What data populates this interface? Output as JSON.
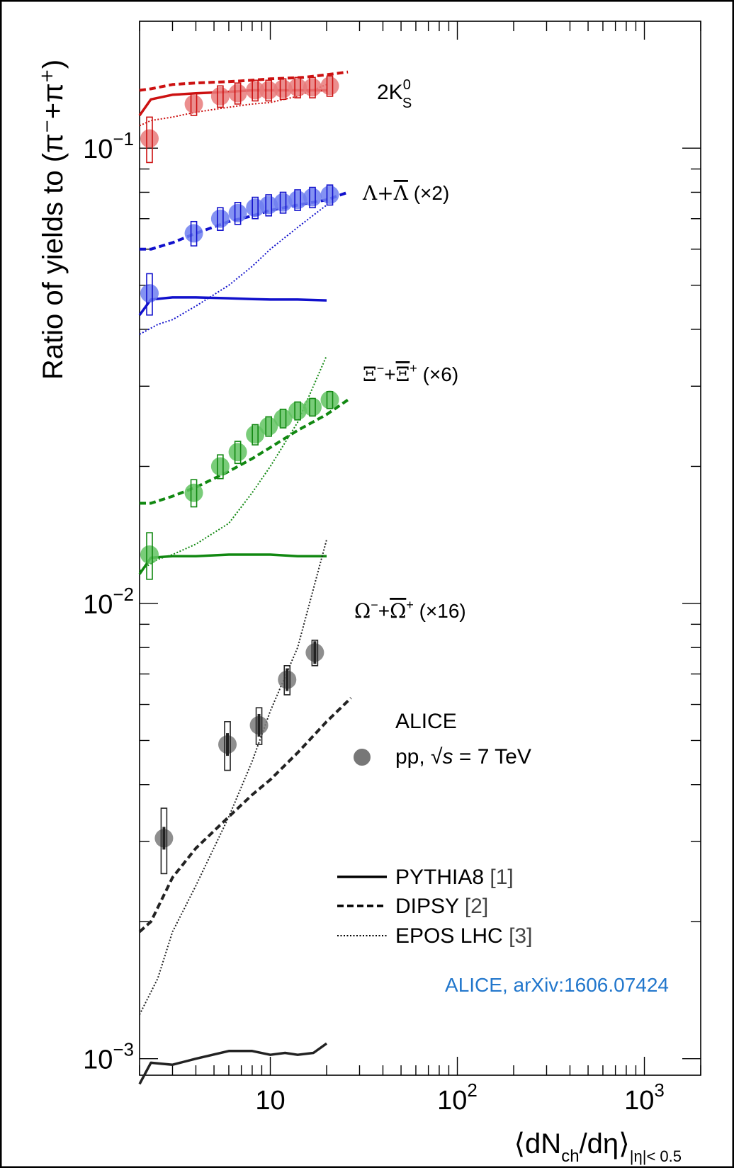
{
  "chart_data": {
    "type": "scatter",
    "title": "",
    "xlabel": {
      "main": "⟨dN",
      "sub1": "ch",
      "mid": "/dη⟩",
      "sub2": "|η|< 0.5"
    },
    "ylabel": {
      "main": "Ratio of yields to (π",
      "sup1": "−",
      "mid": "+π",
      "sup2": "+",
      "end": ")"
    },
    "x_scale": "log",
    "y_scale": "log",
    "xlim": [
      2,
      2000
    ],
    "ylim": [
      0.00092,
      0.19
    ],
    "x_ticks": [
      {
        "value": 10,
        "base": "10",
        "exp": ""
      },
      {
        "value": 100,
        "base": "10",
        "exp": "2"
      },
      {
        "value": 1000,
        "base": "10",
        "exp": "3"
      }
    ],
    "y_ticks": [
      {
        "value": 0.1,
        "base": "10",
        "exp": "−1"
      },
      {
        "value": 0.01,
        "base": "10",
        "exp": "−2"
      },
      {
        "value": 0.001,
        "base": "10",
        "exp": "−3"
      }
    ],
    "species": [
      {
        "label": {
          "text": "2K",
          "sup": "0",
          "sub": "S"
        },
        "color": "#cc1111",
        "light": "#e87a7a",
        "x": [
          2.26,
          3.9,
          5.4,
          6.7,
          8.3,
          9.8,
          11.7,
          14.0,
          16.8,
          20.8
        ],
        "y": [
          0.105,
          0.125,
          0.13,
          0.132,
          0.134,
          0.134,
          0.135,
          0.136,
          0.136,
          0.137
        ],
        "syst": [
          0.012,
          0.007,
          0.007,
          0.007,
          0.007,
          0.007,
          0.007,
          0.007,
          0.007,
          0.007
        ],
        "pythia": {
          "x": [
            2.0,
            2.3,
            3.0,
            4.0,
            6.0,
            8.0,
            10.0,
            14.0,
            20.0
          ],
          "y": [
            0.118,
            0.128,
            0.131,
            0.132,
            0.133,
            0.134,
            0.134,
            0.134,
            0.134
          ]
        },
        "dipsy": {
          "x": [
            2.0,
            2.3,
            3.0,
            4.0,
            6.0,
            8.0,
            10.0,
            15.0,
            20.0,
            26.0
          ],
          "y": [
            0.134,
            0.135,
            0.138,
            0.139,
            0.14,
            0.141,
            0.142,
            0.143,
            0.145,
            0.147
          ]
        },
        "epos": {
          "x": [
            2.0,
            2.3,
            3.0,
            4.0,
            6.0,
            8.0,
            10.0,
            14.0,
            20.0
          ],
          "y": [
            0.112,
            0.115,
            0.117,
            0.12,
            0.123,
            0.125,
            0.126,
            0.13,
            0.138
          ]
        }
      },
      {
        "label": {
          "text": "Λ+Λ̅ (×2)",
          "sup": "",
          "sub": ""
        },
        "color": "#1111cc",
        "light": "#6f7ff0",
        "x": [
          2.26,
          3.9,
          5.4,
          6.7,
          8.3,
          9.8,
          11.7,
          14.0,
          16.8,
          20.8
        ],
        "y": [
          0.048,
          0.065,
          0.07,
          0.072,
          0.074,
          0.075,
          0.076,
          0.077,
          0.078,
          0.079
        ],
        "syst": [
          0.005,
          0.004,
          0.004,
          0.004,
          0.004,
          0.004,
          0.004,
          0.004,
          0.004,
          0.004
        ],
        "pythia": {
          "x": [
            2.0,
            2.3,
            3.0,
            4.0,
            6.0,
            8.0,
            10.0,
            14.0,
            20.0
          ],
          "y": [
            0.043,
            0.0465,
            0.047,
            0.047,
            0.0468,
            0.0466,
            0.0465,
            0.0465,
            0.0463
          ]
        },
        "dipsy": {
          "x": [
            2.0,
            2.3,
            3.0,
            4.0,
            6.0,
            8.0,
            10.0,
            14.0,
            20.0,
            26.0
          ],
          "y": [
            0.06,
            0.06,
            0.062,
            0.065,
            0.069,
            0.071,
            0.073,
            0.075,
            0.077,
            0.08
          ]
        },
        "epos": {
          "x": [
            2.0,
            2.5,
            3.0,
            4.0,
            6.0,
            8.0,
            10.0,
            14.0,
            20.0
          ],
          "y": [
            0.039,
            0.041,
            0.042,
            0.045,
            0.05,
            0.055,
            0.06,
            0.067,
            0.075
          ]
        }
      },
      {
        "label": {
          "text": "Ξ",
          "sup": "−",
          "sub": ""
        },
        "color": "#118811",
        "light": "#62c362",
        "x": [
          2.26,
          3.9,
          5.4,
          6.7,
          8.3,
          9.8,
          11.7,
          14.0,
          16.8,
          20.8
        ],
        "y": [
          0.0128,
          0.0175,
          0.02,
          0.0215,
          0.0235,
          0.0245,
          0.0255,
          0.0265,
          0.027,
          0.028
        ],
        "syst": [
          0.0015,
          0.0012,
          0.0012,
          0.0012,
          0.0012,
          0.0012,
          0.0012,
          0.0012,
          0.0012,
          0.0012
        ],
        "pythia": {
          "x": [
            2.0,
            2.3,
            3.0,
            4.0,
            6.0,
            8.0,
            10.0,
            14.0,
            20.0
          ],
          "y": [
            0.0116,
            0.0126,
            0.0127,
            0.0127,
            0.0128,
            0.0128,
            0.0128,
            0.0127,
            0.0127
          ]
        },
        "dipsy": {
          "x": [
            2.0,
            2.3,
            3.0,
            4.0,
            6.0,
            8.0,
            10.0,
            14.0,
            20.0,
            26.0
          ],
          "y": [
            0.0166,
            0.0166,
            0.0172,
            0.018,
            0.0195,
            0.0208,
            0.022,
            0.024,
            0.026,
            0.028
          ]
        },
        "epos": {
          "x": [
            2.0,
            2.5,
            3.0,
            4.0,
            6.0,
            8.0,
            10.0,
            14.0,
            20.0
          ],
          "y": [
            0.0118,
            0.0125,
            0.0128,
            0.0135,
            0.015,
            0.0175,
            0.02,
            0.025,
            0.035
          ]
        }
      },
      {
        "label": {
          "text": "Ω",
          "sup": "−",
          "sub": ""
        },
        "color": "#222222",
        "light": "#7a7a7a",
        "x": [
          2.7,
          5.9,
          8.7,
          12.3,
          17.3
        ],
        "y": [
          0.00305,
          0.0049,
          0.0054,
          0.0068,
          0.0078
        ],
        "syst": [
          0.0005,
          0.0006,
          0.0005,
          0.0005,
          0.0005
        ],
        "pythia": {
          "x": [
            2.0,
            2.3,
            3.0,
            4.0,
            6.0,
            8.0,
            10.0,
            12.0,
            14.0,
            17.0,
            20.0
          ],
          "y": [
            0.00088,
            0.00098,
            0.00097,
            0.001,
            0.00104,
            0.00104,
            0.00102,
            0.00103,
            0.00102,
            0.00103,
            0.00108
          ]
        },
        "dipsy": {
          "x": [
            2.0,
            2.3,
            3.0,
            4.0,
            6.0,
            8.0,
            10.0,
            14.0,
            20.0,
            27.0
          ],
          "y": [
            0.0019,
            0.002,
            0.0025,
            0.0029,
            0.0034,
            0.0038,
            0.0041,
            0.0047,
            0.0055,
            0.0062
          ]
        },
        "epos": {
          "x": [
            2.0,
            2.5,
            3.0,
            4.0,
            6.0,
            8.0,
            10.0,
            14.0,
            20.0
          ],
          "y": [
            0.00125,
            0.0015,
            0.0019,
            0.0024,
            0.0034,
            0.0045,
            0.0058,
            0.008,
            0.0138
          ]
        }
      }
    ],
    "legend_data": {
      "title": "ALICE",
      "entry": {
        "pre": "pp, √",
        "var": "s",
        "post": " = 7 TeV"
      }
    },
    "legend_models": [
      {
        "style": "solid",
        "label": "PYTHIA8 ",
        "ref": "[1]"
      },
      {
        "style": "dashed",
        "label": "DIPSY ",
        "ref": "[2]"
      },
      {
        "style": "dotted",
        "label": "EPOS LHC ",
        "ref": "[3]"
      }
    ],
    "citation": "ALICE, arXiv:1606.07424",
    "citation_color": "#2277cc",
    "lambda_label": {
      "L1": "Λ+",
      "L2": "Λ",
      "rest": " (×2)"
    },
    "xi_label": {
      "a": "Ξ",
      "asup": "−",
      "b": "+",
      "c": "Ξ",
      "csup": "+",
      "rest": " (×6)"
    },
    "omega_label": {
      "a": "Ω",
      "asup": "−",
      "b": "+",
      "c": "Ω",
      "csup": "+",
      "rest": " (×16)"
    },
    "k0_label": {
      "a": "2K",
      "sup": "0",
      "sub": "S"
    }
  }
}
